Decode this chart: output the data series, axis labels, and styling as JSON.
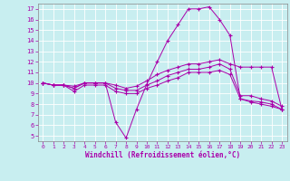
{
  "xlabel": "Windchill (Refroidissement éolien,°C)",
  "background_color": "#c8eef0",
  "grid_color": "#b0d8dc",
  "line_color": "#aa00aa",
  "xlim_min": -0.5,
  "xlim_max": 23.5,
  "ylim_min": 4.5,
  "ylim_max": 17.5,
  "yticks": [
    5,
    6,
    7,
    8,
    9,
    10,
    11,
    12,
    13,
    14,
    15,
    16,
    17
  ],
  "xticks": [
    0,
    1,
    2,
    3,
    4,
    5,
    6,
    7,
    8,
    9,
    10,
    11,
    12,
    13,
    14,
    15,
    16,
    17,
    18,
    19,
    20,
    21,
    22,
    23
  ],
  "line1_x": [
    0,
    1,
    2,
    3,
    4,
    5,
    6,
    7,
    8,
    9,
    10,
    11,
    12,
    13,
    14,
    15,
    16,
    17,
    18,
    19,
    20,
    21,
    22,
    23
  ],
  "line1_y": [
    10,
    9.8,
    9.8,
    9.5,
    10,
    10,
    10,
    6.3,
    4.8,
    7.5,
    9.9,
    12,
    14,
    15.5,
    17,
    17,
    17.2,
    16,
    14.5,
    8.5,
    8.2,
    8.0,
    7.8,
    7.5
  ],
  "line2_x": [
    0,
    1,
    2,
    3,
    4,
    5,
    6,
    7,
    8,
    9,
    10,
    11,
    12,
    13,
    14,
    15,
    16,
    17,
    18,
    19,
    20,
    21,
    22,
    23
  ],
  "line2_y": [
    10,
    9.8,
    9.8,
    9.7,
    10,
    10,
    10,
    9.8,
    9.5,
    9.7,
    10.2,
    10.8,
    11.2,
    11.5,
    11.8,
    11.8,
    12.0,
    12.2,
    11.8,
    11.5,
    11.5,
    11.5,
    11.5,
    7.5
  ],
  "line3_x": [
    0,
    1,
    2,
    3,
    4,
    5,
    6,
    7,
    8,
    9,
    10,
    11,
    12,
    13,
    14,
    15,
    16,
    17,
    18,
    19,
    20,
    21,
    22,
    23
  ],
  "line3_y": [
    10,
    9.8,
    9.8,
    9.5,
    10,
    10,
    10,
    9.5,
    9.3,
    9.3,
    9.8,
    10.2,
    10.7,
    11.0,
    11.3,
    11.3,
    11.5,
    11.8,
    11.3,
    8.8,
    8.8,
    8.5,
    8.3,
    7.8
  ],
  "line4_x": [
    0,
    1,
    2,
    3,
    4,
    5,
    6,
    7,
    8,
    9,
    10,
    11,
    12,
    13,
    14,
    15,
    16,
    17,
    18,
    19,
    20,
    21,
    22,
    23
  ],
  "line4_y": [
    10,
    9.8,
    9.8,
    9.2,
    9.8,
    9.8,
    9.8,
    9.2,
    9.0,
    9.0,
    9.5,
    9.8,
    10.2,
    10.5,
    11.0,
    11.0,
    11.0,
    11.2,
    10.8,
    8.5,
    8.3,
    8.2,
    8.0,
    7.5
  ]
}
